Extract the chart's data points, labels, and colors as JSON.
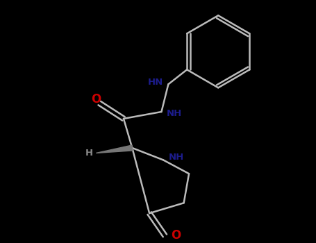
{
  "background_color": "#000000",
  "atom_N_color": "#1c1c8c",
  "atom_O_color": "#cc0000",
  "atom_H_color": "#666666",
  "bond_color": "#bbbbbb",
  "bond_width": 1.8,
  "fig_width": 4.55,
  "fig_height": 3.5,
  "dpi": 100,
  "xlim": [
    0,
    9.1
  ],
  "ylim": [
    0,
    7.0
  ]
}
